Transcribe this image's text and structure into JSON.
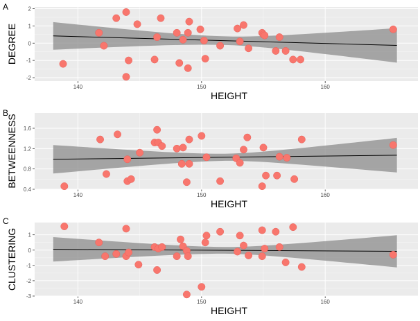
{
  "chart_data": [
    {
      "type": "scatter",
      "panel_label": "A",
      "xlabel": "HEIGHT",
      "ylabel": "DEGREE",
      "xlim": [
        136.5,
        167.5
      ],
      "ylim": [
        -2.2,
        2.1
      ],
      "xticks": [
        140,
        150,
        160
      ],
      "yticks": [
        -2,
        -1,
        0,
        1,
        2
      ],
      "ytick_decimals": 0,
      "grid": true,
      "fit": {
        "x0": 138,
        "x1": 165.8,
        "y0": 0.42,
        "y1": -0.13,
        "band0": 0.8,
        "band1": 1.0,
        "band_mid": 0.25
      },
      "points": [
        [
          138.8,
          -1.2
        ],
        [
          141.7,
          0.6
        ],
        [
          142.1,
          -0.15
        ],
        [
          143.1,
          1.45
        ],
        [
          143.9,
          1.8
        ],
        [
          143.9,
          -1.95
        ],
        [
          144.1,
          -1.0
        ],
        [
          144.8,
          1.1
        ],
        [
          146.2,
          -0.95
        ],
        [
          146.4,
          0.35
        ],
        [
          146.7,
          1.45
        ],
        [
          148.0,
          0.6
        ],
        [
          148.2,
          -1.15
        ],
        [
          148.5,
          0.2
        ],
        [
          148.9,
          0.6
        ],
        [
          148.9,
          -1.45
        ],
        [
          149.0,
          1.25
        ],
        [
          149.9,
          0.8
        ],
        [
          150.2,
          0.15
        ],
        [
          150.3,
          -0.9
        ],
        [
          151.5,
          -0.15
        ],
        [
          152.9,
          0.85
        ],
        [
          153.1,
          0.1
        ],
        [
          153.4,
          1.05
        ],
        [
          153.8,
          -0.3
        ],
        [
          154.9,
          0.6
        ],
        [
          155.0,
          0.5
        ],
        [
          155.1,
          0.45
        ],
        [
          156.0,
          -0.45
        ],
        [
          156.3,
          0.35
        ],
        [
          156.8,
          -0.45
        ],
        [
          157.4,
          -0.95
        ],
        [
          158.0,
          -0.95
        ],
        [
          165.5,
          0.8
        ]
      ]
    },
    {
      "type": "scatter",
      "panel_label": "B",
      "xlabel": "HEIGHT",
      "ylabel": "BETWEENNESS",
      "xlim": [
        136.5,
        167.5
      ],
      "ylim": [
        0.4,
        1.9
      ],
      "xticks": [
        140,
        150,
        160
      ],
      "yticks": [
        0.4,
        0.8,
        1.2,
        1.6
      ],
      "ytick_decimals": 1,
      "grid": true,
      "fit": {
        "x0": 138,
        "x1": 165.8,
        "y0": 0.99,
        "y1": 1.07,
        "band0": 0.28,
        "band1": 0.34,
        "band_mid": 0.07
      },
      "points": [
        [
          138.9,
          0.46
        ],
        [
          141.8,
          1.38
        ],
        [
          142.3,
          0.7
        ],
        [
          143.2,
          1.48
        ],
        [
          144.0,
          0.99
        ],
        [
          144.0,
          0.56
        ],
        [
          144.3,
          0.6
        ],
        [
          145.0,
          1.12
        ],
        [
          146.2,
          1.32
        ],
        [
          146.4,
          1.57
        ],
        [
          146.5,
          1.32
        ],
        [
          146.8,
          1.25
        ],
        [
          148.0,
          1.2
        ],
        [
          148.4,
          0.9
        ],
        [
          148.5,
          1.22
        ],
        [
          148.8,
          0.54
        ],
        [
          149.0,
          1.38
        ],
        [
          149.0,
          0.9
        ],
        [
          150.0,
          1.45
        ],
        [
          150.4,
          1.03
        ],
        [
          151.5,
          0.56
        ],
        [
          152.8,
          1.01
        ],
        [
          153.1,
          0.92
        ],
        [
          153.4,
          1.18
        ],
        [
          153.7,
          1.42
        ],
        [
          154.9,
          0.46
        ],
        [
          155.0,
          1.22
        ],
        [
          155.2,
          0.67
        ],
        [
          156.1,
          0.67
        ],
        [
          156.3,
          1.04
        ],
        [
          156.9,
          1.02
        ],
        [
          157.5,
          0.6
        ],
        [
          158.1,
          1.38
        ],
        [
          165.5,
          1.27
        ]
      ]
    },
    {
      "type": "scatter",
      "panel_label": "C",
      "xlabel": "HEIGHT",
      "ylabel": "CLUSTERING",
      "xlim": [
        136.5,
        167.5
      ],
      "ylim": [
        -3.0,
        1.8
      ],
      "xticks": [
        140,
        150,
        160
      ],
      "yticks": [
        -3,
        -2,
        -1,
        0,
        1
      ],
      "ytick_decimals": 0,
      "grid": true,
      "fit": {
        "x0": 138,
        "x1": 165.8,
        "y0": 0.05,
        "y1": -0.08,
        "band0": 0.8,
        "band1": 1.05,
        "band_mid": 0.22
      },
      "points": [
        [
          138.9,
          1.55
        ],
        [
          141.7,
          0.5
        ],
        [
          142.2,
          -0.4
        ],
        [
          143.1,
          -0.25
        ],
        [
          143.9,
          1.4
        ],
        [
          143.9,
          -0.4
        ],
        [
          144.1,
          -0.15
        ],
        [
          144.9,
          -0.95
        ],
        [
          146.2,
          0.2
        ],
        [
          146.4,
          -1.3
        ],
        [
          146.5,
          0.1
        ],
        [
          146.8,
          0.2
        ],
        [
          148.0,
          -0.4
        ],
        [
          148.3,
          0.7
        ],
        [
          148.5,
          0.25
        ],
        [
          148.8,
          -0.05
        ],
        [
          148.9,
          -0.4
        ],
        [
          148.8,
          -2.9
        ],
        [
          150.0,
          -2.4
        ],
        [
          150.4,
          0.95
        ],
        [
          150.3,
          0.5
        ],
        [
          151.5,
          1.2
        ],
        [
          152.9,
          -0.1
        ],
        [
          153.1,
          0.95
        ],
        [
          153.4,
          0.3
        ],
        [
          153.8,
          -0.35
        ],
        [
          154.9,
          1.3
        ],
        [
          154.9,
          -0.4
        ],
        [
          155.1,
          0.1
        ],
        [
          156.0,
          1.2
        ],
        [
          156.3,
          0.2
        ],
        [
          156.8,
          -0.8
        ],
        [
          157.4,
          1.5
        ],
        [
          158.1,
          -1.1
        ],
        [
          165.5,
          -0.3
        ]
      ]
    }
  ]
}
